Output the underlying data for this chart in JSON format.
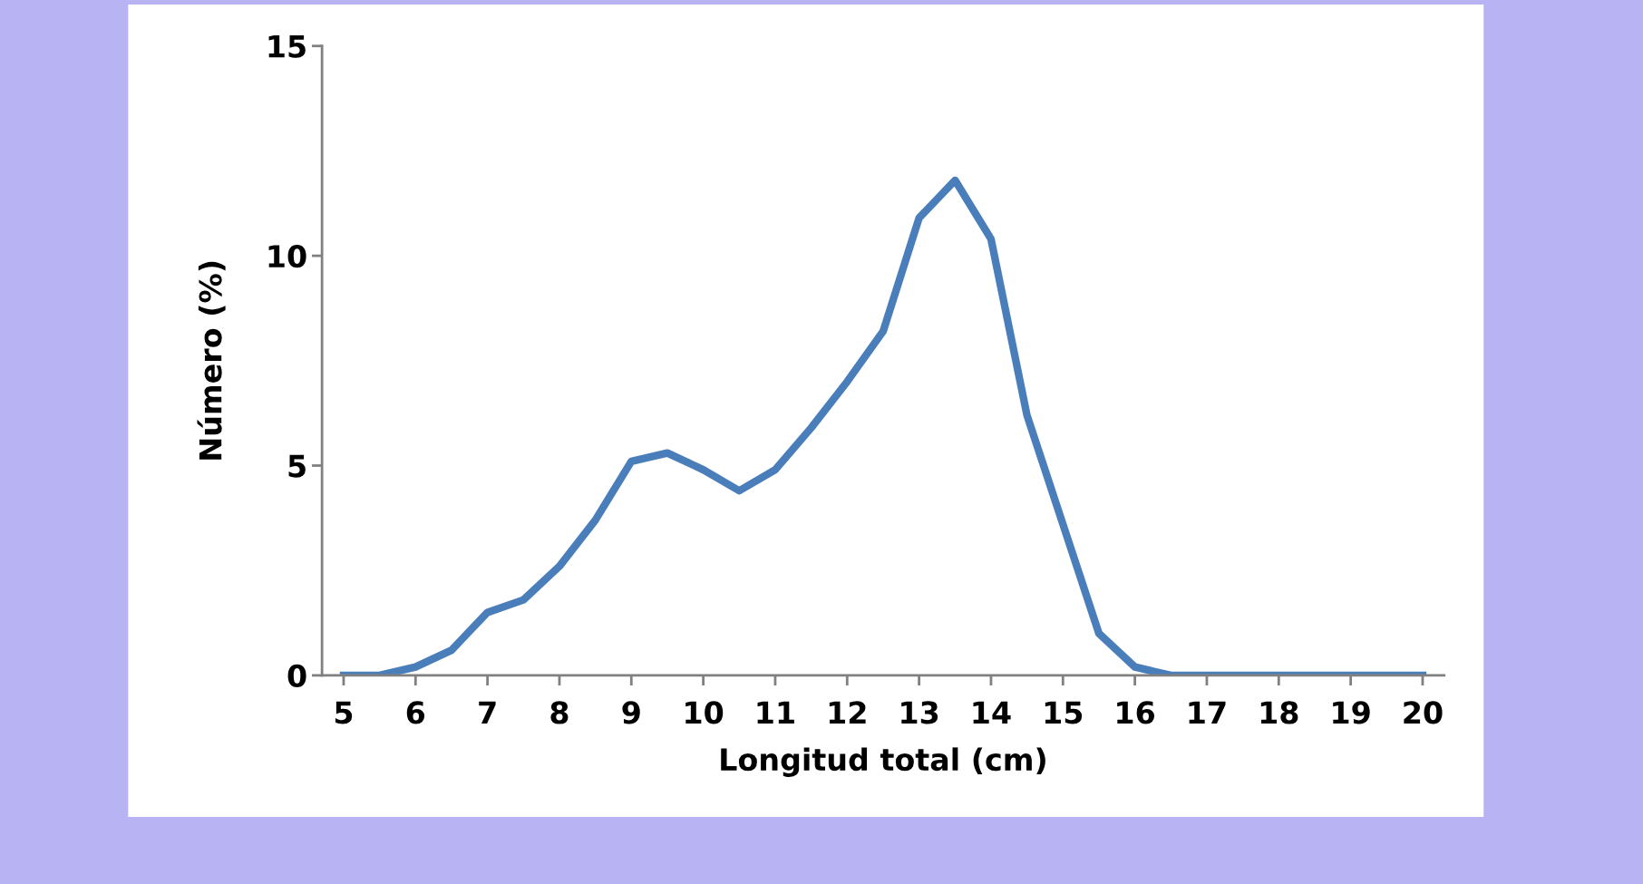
{
  "chart_data": {
    "type": "line",
    "xlabel": "Longitud total (cm)",
    "ylabel": "Número (%)",
    "x": [
      5,
      5.5,
      6,
      6.5,
      7,
      7.5,
      8,
      8.5,
      9,
      9.5,
      10,
      10.5,
      11,
      11.5,
      12,
      12.5,
      13,
      13.5,
      14,
      14.5,
      15,
      15.5,
      16,
      16.5,
      17,
      17.5,
      18,
      18.5,
      19,
      19.5,
      20
    ],
    "series": [
      {
        "color": "#4a7ebb",
        "values": [
          0,
          0,
          0.2,
          0.6,
          1.5,
          1.8,
          2.6,
          3.7,
          5.1,
          5.3,
          4.9,
          4.4,
          4.9,
          5.9,
          7.0,
          8.2,
          10.9,
          11.8,
          10.4,
          6.2,
          3.6,
          1.0,
          0.2,
          0,
          0,
          0,
          0,
          0,
          0,
          0,
          0
        ]
      }
    ],
    "xlim": [
      4.7,
      20.3
    ],
    "xticks": [
      5,
      6,
      7,
      8,
      9,
      10,
      11,
      12,
      13,
      14,
      15,
      16,
      17,
      18,
      19,
      20
    ],
    "ylim": [
      0,
      15
    ],
    "yticks": [
      0,
      5,
      10,
      15
    ],
    "grid": false,
    "marker": "none",
    "line_style": "solid"
  }
}
